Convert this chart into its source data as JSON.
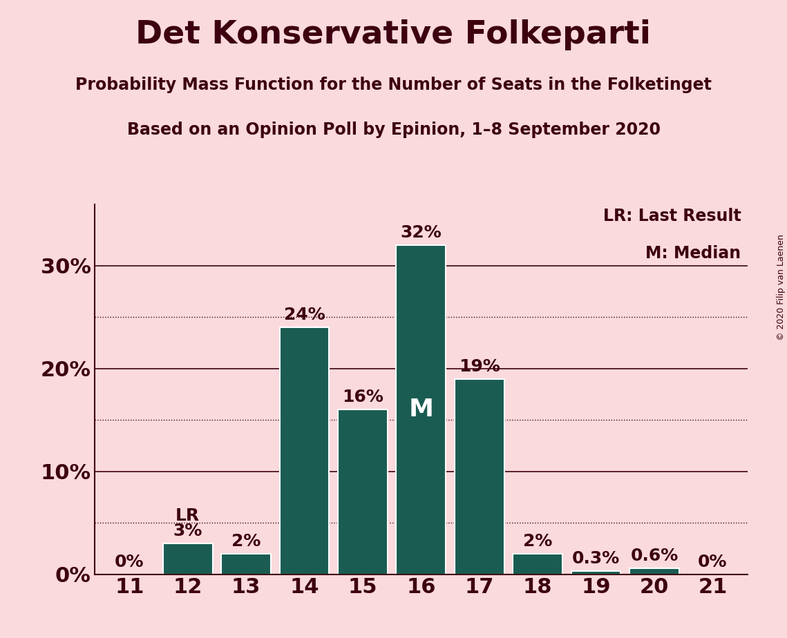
{
  "title": "Det Konservative Folkeparti",
  "subtitle1": "Probability Mass Function for the Number of Seats in the Folketinget",
  "subtitle2": "Based on an Opinion Poll by Epinion, 1–8 September 2020",
  "copyright": "© 2020 Filip van Laenen",
  "categories": [
    11,
    12,
    13,
    14,
    15,
    16,
    17,
    18,
    19,
    20,
    21
  ],
  "values": [
    0.0,
    3.0,
    2.0,
    24.0,
    16.0,
    32.0,
    19.0,
    2.0,
    0.3,
    0.6,
    0.0
  ],
  "bar_color": "#1a5c52",
  "background_color": "#fadadd",
  "text_color": "#3d0010",
  "median_seat": 16,
  "lr_seat": 12,
  "bar_labels": [
    "0%",
    "3%",
    "2%",
    "24%",
    "16%",
    "32%",
    "19%",
    "2%",
    "0.3%",
    "0.6%",
    "0%"
  ],
  "yticks": [
    0,
    10,
    20,
    30
  ],
  "ytick_labels": [
    "0%",
    "10%",
    "20%",
    "30%"
  ],
  "dotted_lines": [
    5,
    15,
    25
  ],
  "ylim": [
    0,
    36
  ],
  "legend_lr": "LR: Last Result",
  "legend_m": "M: Median",
  "title_fontsize": 34,
  "subtitle_fontsize": 17,
  "axis_fontsize": 22,
  "bar_label_fontsize": 18,
  "legend_fontsize": 17,
  "copyright_fontsize": 9
}
